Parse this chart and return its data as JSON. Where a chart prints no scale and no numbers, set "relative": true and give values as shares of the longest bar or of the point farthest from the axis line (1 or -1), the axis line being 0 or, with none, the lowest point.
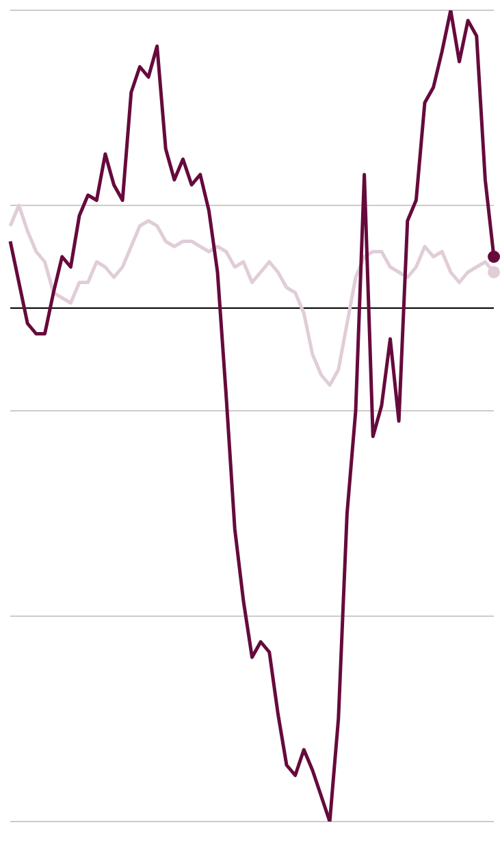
{
  "chart_data": {
    "type": "line",
    "relative": true,
    "grid": true,
    "categories": [
      null,
      null,
      null,
      null,
      null,
      null,
      null,
      null,
      null,
      null,
      null,
      null,
      null,
      null,
      null,
      null,
      null,
      null,
      null,
      null,
      null,
      null,
      null,
      null,
      null,
      null,
      null,
      null,
      null,
      null,
      null,
      null,
      null,
      null,
      null,
      null,
      null,
      null,
      null,
      null,
      null,
      null,
      null,
      null,
      null,
      null,
      null,
      null,
      null,
      null,
      null,
      null,
      null,
      null,
      null,
      null,
      null
    ],
    "series": [
      {
        "color": "#e0cdd8",
        "values": [
          0.16,
          0.2,
          0.15,
          0.11,
          0.09,
          0.03,
          0.02,
          0.01,
          0.05,
          0.05,
          0.09,
          0.08,
          0.06,
          0.08,
          0.12,
          0.16,
          0.17,
          0.16,
          0.13,
          0.12,
          0.13,
          0.13,
          0.12,
          0.11,
          0.12,
          0.11,
          0.08,
          0.09,
          0.05,
          0.07,
          0.09,
          0.07,
          0.04,
          0.03,
          -0.01,
          -0.09,
          -0.13,
          -0.15,
          -0.12,
          -0.03,
          0.06,
          0.1,
          0.11,
          0.11,
          0.08,
          0.07,
          0.06,
          0.08,
          0.12,
          0.1,
          0.11,
          0.07,
          0.05,
          0.07,
          0.08,
          0.09,
          0.07
        ]
      },
      {
        "color": "#660a3c",
        "values": [
          0.13,
          0.05,
          -0.03,
          -0.05,
          -0.05,
          0.03,
          0.1,
          0.08,
          0.18,
          0.22,
          0.21,
          0.3,
          0.24,
          0.21,
          0.42,
          0.47,
          0.45,
          0.51,
          0.31,
          0.25,
          0.29,
          0.24,
          0.26,
          0.19,
          0.07,
          -0.17,
          -0.43,
          -0.57,
          -0.68,
          -0.65,
          -0.67,
          -0.79,
          -0.89,
          -0.91,
          -0.86,
          -0.9,
          -0.95,
          -1,
          -0.8,
          -0.4,
          -0.2,
          0.26,
          -0.25,
          -0.19,
          -0.06,
          -0.22,
          0.17,
          0.21,
          0.4,
          0.43,
          0.5,
          0.58,
          0.48,
          0.56,
          0.53,
          0.25,
          0.1
        ]
      }
    ]
  }
}
